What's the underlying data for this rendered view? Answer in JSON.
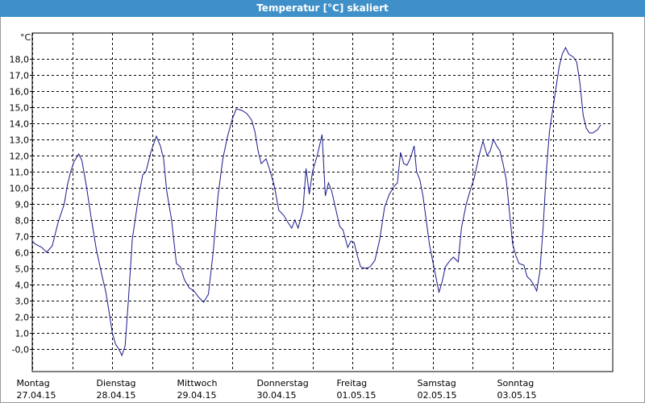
{
  "window": {
    "title": "Temperatur [°C] skaliert"
  },
  "chart_data": {
    "type": "line",
    "title": "Temperatur [°C] skaliert",
    "ylabel": "°C",
    "xlabel": "",
    "ylim": [
      -1.4,
      19.6
    ],
    "xlim": [
      0,
      7.25
    ],
    "yticks": [
      "-0,0",
      "1,0",
      "2,0",
      "3,0",
      "4,0",
      "5,0",
      "6,0",
      "7,0",
      "8,0",
      "9,0",
      "10,0",
      "11,0",
      "12,0",
      "13,0",
      "14,0",
      "15,0",
      "16,0",
      "17,0",
      "18,0"
    ],
    "ytick_values": [
      0,
      1,
      2,
      3,
      4,
      5,
      6,
      7,
      8,
      9,
      10,
      11,
      12,
      13,
      14,
      15,
      16,
      17,
      18
    ],
    "categories": [
      {
        "day": "Montag",
        "date": "27.04.15"
      },
      {
        "day": "Dienstag",
        "date": "28.04.15"
      },
      {
        "day": "Mittwoch",
        "date": "29.04.15"
      },
      {
        "day": "Donnerstag",
        "date": "30.04.15"
      },
      {
        "day": "Freitag",
        "date": "01.05.15"
      },
      {
        "day": "Samstag",
        "date": "02.05.15"
      },
      {
        "day": "Sonntag",
        "date": "03.05.15"
      }
    ],
    "grid": true,
    "line_color": "#1a1a8c",
    "series": [
      {
        "points": [
          [
            0.0,
            6.7
          ],
          [
            0.04,
            6.5
          ],
          [
            0.12,
            6.3
          ],
          [
            0.18,
            6.0
          ],
          [
            0.25,
            6.4
          ],
          [
            0.32,
            7.8
          ],
          [
            0.4,
            9.0
          ],
          [
            0.44,
            10.2
          ],
          [
            0.48,
            11.0
          ],
          [
            0.52,
            11.6
          ],
          [
            0.58,
            12.1
          ],
          [
            0.62,
            11.7
          ],
          [
            0.68,
            10.0
          ],
          [
            0.74,
            8.0
          ],
          [
            0.8,
            6.2
          ],
          [
            0.86,
            4.8
          ],
          [
            0.92,
            3.5
          ],
          [
            0.96,
            2.3
          ],
          [
            1.0,
            1.0
          ],
          [
            1.04,
            0.3
          ],
          [
            1.08,
            0.0
          ],
          [
            1.12,
            -0.4
          ],
          [
            1.16,
            0.2
          ],
          [
            1.2,
            3.0
          ],
          [
            1.25,
            6.8
          ],
          [
            1.32,
            9.2
          ],
          [
            1.38,
            10.8
          ],
          [
            1.42,
            11.0
          ],
          [
            1.48,
            12.2
          ],
          [
            1.55,
            13.2
          ],
          [
            1.6,
            12.6
          ],
          [
            1.64,
            11.8
          ],
          [
            1.68,
            9.8
          ],
          [
            1.74,
            8.0
          ],
          [
            1.8,
            5.3
          ],
          [
            1.85,
            5.1
          ],
          [
            1.9,
            4.3
          ],
          [
            1.96,
            3.8
          ],
          [
            2.02,
            3.6
          ],
          [
            2.08,
            3.2
          ],
          [
            2.14,
            2.9
          ],
          [
            2.2,
            3.4
          ],
          [
            2.26,
            6.0
          ],
          [
            2.32,
            9.5
          ],
          [
            2.38,
            11.8
          ],
          [
            2.44,
            13.2
          ],
          [
            2.5,
            14.3
          ],
          [
            2.55,
            14.9
          ],
          [
            2.62,
            14.8
          ],
          [
            2.68,
            14.6
          ],
          [
            2.74,
            14.2
          ],
          [
            2.78,
            13.5
          ],
          [
            2.82,
            12.3
          ],
          [
            2.86,
            11.5
          ],
          [
            2.92,
            11.8
          ],
          [
            2.96,
            11.2
          ],
          [
            3.02,
            10.2
          ],
          [
            3.08,
            8.6
          ],
          [
            3.14,
            8.3
          ],
          [
            3.2,
            7.8
          ],
          [
            3.24,
            7.5
          ],
          [
            3.28,
            8.0
          ],
          [
            3.32,
            7.5
          ],
          [
            3.38,
            8.6
          ],
          [
            3.42,
            11.2
          ],
          [
            3.46,
            9.6
          ],
          [
            3.5,
            11.0
          ],
          [
            3.56,
            12.0
          ],
          [
            3.62,
            13.3
          ],
          [
            3.66,
            9.5
          ],
          [
            3.7,
            10.3
          ],
          [
            3.74,
            9.8
          ],
          [
            3.78,
            8.9
          ],
          [
            3.84,
            7.6
          ],
          [
            3.88,
            7.4
          ],
          [
            3.94,
            6.3
          ],
          [
            3.98,
            6.7
          ],
          [
            4.02,
            6.6
          ],
          [
            4.06,
            5.8
          ],
          [
            4.1,
            5.1
          ],
          [
            4.16,
            5.0
          ],
          [
            4.22,
            5.1
          ],
          [
            4.28,
            5.5
          ],
          [
            4.34,
            6.8
          ],
          [
            4.4,
            8.8
          ],
          [
            4.46,
            9.6
          ],
          [
            4.52,
            10.1
          ],
          [
            4.56,
            10.3
          ],
          [
            4.6,
            12.2
          ],
          [
            4.64,
            11.5
          ],
          [
            4.68,
            11.4
          ],
          [
            4.72,
            11.8
          ],
          [
            4.77,
            12.6
          ],
          [
            4.8,
            11.0
          ],
          [
            4.84,
            10.5
          ],
          [
            4.88,
            9.5
          ],
          [
            4.92,
            8.0
          ],
          [
            4.96,
            6.5
          ],
          [
            5.02,
            5.0
          ],
          [
            5.06,
            4.0
          ],
          [
            5.08,
            3.5
          ],
          [
            5.12,
            4.2
          ],
          [
            5.16,
            5.1
          ],
          [
            5.22,
            5.5
          ],
          [
            5.26,
            5.7
          ],
          [
            5.32,
            5.4
          ],
          [
            5.36,
            7.5
          ],
          [
            5.42,
            9.0
          ],
          [
            5.48,
            10.0
          ],
          [
            5.52,
            10.6
          ],
          [
            5.58,
            12.0
          ],
          [
            5.63,
            12.9
          ],
          [
            5.68,
            12.0
          ],
          [
            5.72,
            12.3
          ],
          [
            5.76,
            13.0
          ],
          [
            5.8,
            12.6
          ],
          [
            5.84,
            12.3
          ],
          [
            5.88,
            11.5
          ],
          [
            5.92,
            10.5
          ],
          [
            5.96,
            8.5
          ],
          [
            6.0,
            6.5
          ],
          [
            6.04,
            5.8
          ],
          [
            6.08,
            5.3
          ],
          [
            6.14,
            5.2
          ],
          [
            6.18,
            4.5
          ],
          [
            6.22,
            4.3
          ],
          [
            6.26,
            4.0
          ],
          [
            6.3,
            3.6
          ],
          [
            6.34,
            4.8
          ],
          [
            6.38,
            7.5
          ],
          [
            6.42,
            11.0
          ],
          [
            6.46,
            13.5
          ],
          [
            6.52,
            15.5
          ],
          [
            6.58,
            17.5
          ],
          [
            6.62,
            18.3
          ],
          [
            6.66,
            18.7
          ],
          [
            6.7,
            18.3
          ],
          [
            6.76,
            18.1
          ],
          [
            6.8,
            17.8
          ],
          [
            6.84,
            16.5
          ],
          [
            6.88,
            14.5
          ],
          [
            6.92,
            13.7
          ],
          [
            6.96,
            13.4
          ],
          [
            7.0,
            13.4
          ],
          [
            7.06,
            13.6
          ],
          [
            7.1,
            13.9
          ]
        ]
      }
    ]
  }
}
